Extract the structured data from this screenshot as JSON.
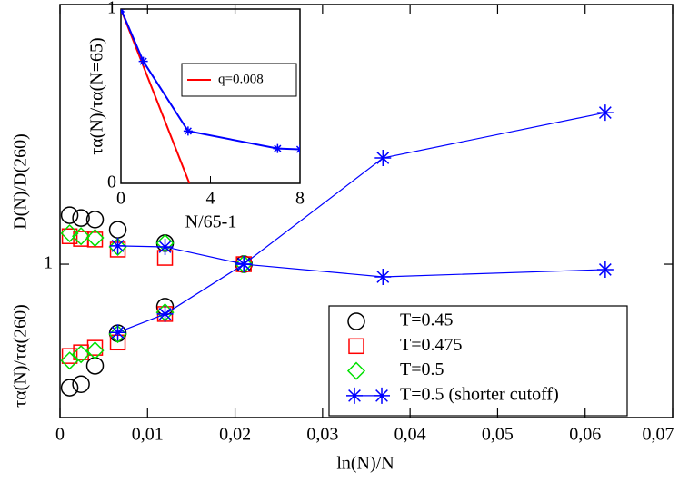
{
  "chart_data": {
    "type": "scatter",
    "xlabel": "ln(N)/N",
    "ylabel_upper": "D(N)/D(260)",
    "ylabel_lower": "τα(N)/τα(260)",
    "xlim": [
      0,
      0.07
    ],
    "xticks": [
      0,
      {
        "value": 0.01,
        "label": "0,01"
      },
      {
        "value": 0.02,
        "label": "0,02"
      },
      {
        "value": 0.03,
        "label": "0,03"
      },
      {
        "value": 0.04,
        "label": "0,04"
      },
      {
        "value": 0.05,
        "label": "0,05"
      },
      {
        "value": 0.06,
        "label": "0,06"
      },
      {
        "value": 0.07,
        "label": "0,07"
      }
    ],
    "ylim": [
      0.649,
      2.079
    ],
    "yticks": [
      1
    ],
    "log_y": true,
    "legend": "lower right",
    "series": [
      {
        "name": "T=0.45",
        "color": "#000000",
        "marker": "circle",
        "x": [
          0.0011,
          0.0024,
          0.004,
          0.0066,
          0.012,
          0.021,
          0.012,
          0.0066,
          0.004,
          0.0024,
          0.0011
        ],
        "values": [
          1.148,
          1.139,
          1.134,
          1.102,
          1.061,
          1.0,
          0.887,
          0.823,
          0.751,
          0.713,
          0.706
        ]
      },
      {
        "name": "T=0.475",
        "color": "#ff0000",
        "marker": "square",
        "x": [
          0.0011,
          0.0024,
          0.004,
          0.0066,
          0.012,
          0.021,
          0.012,
          0.0066,
          0.004,
          0.0024,
          0.0011
        ],
        "values": [
          1.082,
          1.074,
          1.072,
          1.042,
          1.018,
          1.0,
          0.869,
          0.802,
          0.79,
          0.78,
          0.772
        ]
      },
      {
        "name": "T=0.5",
        "color": "#00e000",
        "marker": "diamond",
        "x": [
          0.0011,
          0.0024,
          0.004,
          0.0066,
          0.012,
          0.021,
          0.012,
          0.0066,
          0.004,
          0.0024,
          0.0011
        ],
        "values": [
          1.091,
          1.082,
          1.077,
          1.05,
          1.061,
          1.0,
          0.873,
          0.821,
          0.784,
          0.776,
          0.762
        ]
      },
      {
        "name": "T=0.5 (shorter cutoff)",
        "color": "#0000ff",
        "marker": "star",
        "line": true,
        "branches": [
          {
            "x": [
              0.0066,
              0.012,
              0.021,
              0.0369,
              0.0623
            ],
            "values": [
              1.053,
              1.05,
              1.0,
              0.965,
              0.985
            ]
          },
          {
            "x": [
              0.0066,
              0.012,
              0.021,
              0.0369,
              0.0623
            ],
            "values": [
              0.825,
              0.869,
              1.0,
              1.349,
              1.533
            ]
          }
        ]
      }
    ],
    "inset": {
      "xlabel": "N/65-1",
      "ylabel": "τα(N)/τα(N=65)",
      "xlim": [
        0,
        8
      ],
      "ylim": [
        0,
        1
      ],
      "xticks": [
        0,
        4,
        8
      ],
      "yticks": [
        0,
        1
      ],
      "series": [
        {
          "name": "q=0.008",
          "color": "#ff0000",
          "x": [
            0,
            3.06
          ],
          "values": [
            1,
            0
          ]
        },
        {
          "color": "#0000ff",
          "marker": "star",
          "x": [
            0,
            1,
            3,
            7,
            8
          ],
          "values": [
            1,
            0.7,
            0.3,
            0.2,
            0.195
          ]
        }
      ]
    }
  }
}
